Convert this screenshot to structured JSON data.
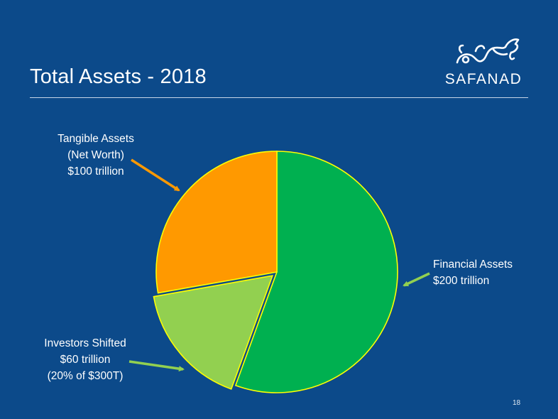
{
  "slide": {
    "title": "Total Assets - 2018",
    "page_number": "18"
  },
  "logo": {
    "text": "SAFANAD"
  },
  "labels": {
    "tangible": [
      "Tangible Assets",
      "(Net Worth)",
      "$100 trillion"
    ],
    "financial": [
      "Financial Assets",
      "$200 trillion"
    ],
    "investors": [
      "Investors Shifted",
      "$60 trillion",
      "(20% of $300T)"
    ]
  },
  "colors": {
    "background": "#0c4a8a",
    "financial": "#00b050",
    "tangible": "#ff9900",
    "investors": "#92d050",
    "slice_border": "#ffff00",
    "tangible_arrow": "#ff9900",
    "green_arrow": "#92d050"
  },
  "chart_data": {
    "type": "pie",
    "unit": "$ trillion",
    "slices": [
      {
        "name": "Financial Assets",
        "value": 200,
        "exploded": false
      },
      {
        "name": "Investors Shifted",
        "value": 60,
        "exploded": true
      },
      {
        "name": "Tangible Assets (Net Worth)",
        "value": 100,
        "exploded": false
      }
    ]
  }
}
